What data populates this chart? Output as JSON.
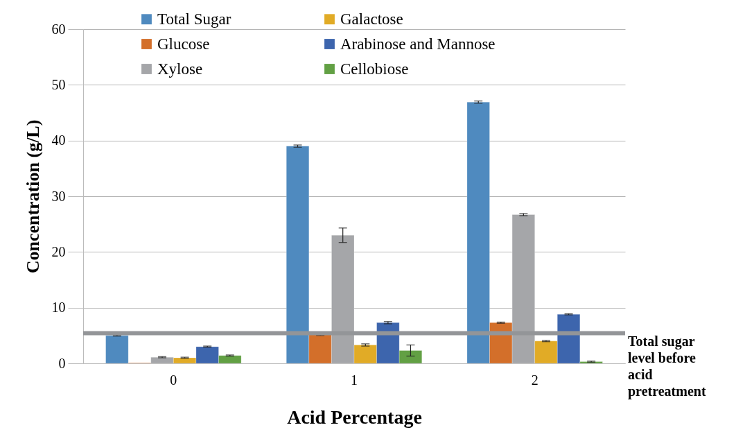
{
  "chart_data": {
    "type": "bar",
    "xlabel": "Acid Percentage",
    "ylabel": "Concentration (g/L)",
    "categories": [
      "0",
      "1",
      "2"
    ],
    "series": [
      {
        "name": "Total Sugar",
        "color": "#4f8abf",
        "values": [
          5.0,
          39.0,
          46.9
        ],
        "errors": [
          0.1,
          0.2,
          0.2
        ]
      },
      {
        "name": "Glucose",
        "color": "#d36f2a",
        "values": [
          0.1,
          5.3,
          7.3
        ],
        "errors": [
          null,
          0.3,
          0.1
        ]
      },
      {
        "name": "Xylose",
        "color": "#a5a6a9",
        "values": [
          1.1,
          23.0,
          26.7
        ],
        "errors": [
          0.1,
          1.3,
          0.2
        ]
      },
      {
        "name": "Galactose",
        "color": "#e1ab26",
        "values": [
          1.0,
          3.3,
          4.0
        ],
        "errors": [
          0.1,
          0.2,
          0.1
        ]
      },
      {
        "name": "Arabinose and Mannose",
        "color": "#3d65ad",
        "values": [
          3.0,
          7.3,
          8.8
        ],
        "errors": [
          0.1,
          0.2,
          0.1
        ]
      },
      {
        "name": "Cellobiose",
        "color": "#62a044",
        "values": [
          1.4,
          2.3,
          0.3
        ],
        "errors": [
          0.1,
          1.0,
          0.1
        ]
      }
    ],
    "ylim": [
      0,
      60
    ],
    "yticks": [
      0,
      10,
      20,
      30,
      40,
      50,
      60
    ],
    "grid": "y",
    "legend": "top",
    "ref_lines": [
      {
        "axis": "y",
        "value": 5.4,
        "label": "Total sugar level before acid pretreatment",
        "color": "#939598"
      }
    ]
  }
}
